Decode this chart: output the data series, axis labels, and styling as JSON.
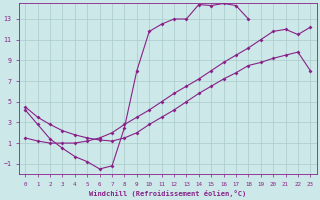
{
  "xlabel": "Windchill (Refroidissement éolien,°C)",
  "bg_color": "#cce8e8",
  "line_color": "#882288",
  "grid_color": "#aacccc",
  "xlim": [
    -0.5,
    23.5
  ],
  "ylim": [
    -2.0,
    14.5
  ],
  "xticks": [
    0,
    1,
    2,
    3,
    4,
    5,
    6,
    7,
    8,
    9,
    10,
    11,
    12,
    13,
    14,
    15,
    16,
    17,
    18,
    19,
    20,
    21,
    22,
    23
  ],
  "yticks": [
    -1,
    1,
    3,
    5,
    7,
    9,
    11,
    13
  ],
  "line1_x": [
    0,
    1,
    2,
    3,
    4,
    5,
    6,
    7,
    8,
    9,
    10,
    11,
    12,
    13,
    14,
    15,
    16,
    17,
    18
  ],
  "line1_y": [
    4.2,
    2.8,
    1.4,
    0.5,
    -0.3,
    -0.8,
    -1.5,
    -1.2,
    2.5,
    8.0,
    11.8,
    12.5,
    13.0,
    13.0,
    14.4,
    14.3,
    14.5,
    14.3,
    13.0
  ],
  "line2_x": [
    0,
    1,
    2,
    3,
    4,
    5,
    6,
    7,
    8,
    9,
    10,
    11,
    12,
    13,
    14,
    15,
    16,
    17,
    18,
    19,
    20,
    21,
    22,
    23
  ],
  "line2_y": [
    4.5,
    3.5,
    2.8,
    2.2,
    1.8,
    1.5,
    1.3,
    1.2,
    1.5,
    2.0,
    2.8,
    3.5,
    4.2,
    5.0,
    5.8,
    6.5,
    7.2,
    7.8,
    8.5,
    8.8,
    9.2,
    9.5,
    9.8,
    8.0
  ],
  "line3_x": [
    0,
    1,
    2,
    3,
    4,
    5,
    6,
    7,
    8,
    9,
    10,
    11,
    12,
    13,
    14,
    15,
    16,
    17,
    18,
    19,
    20,
    21,
    22,
    23
  ],
  "line3_y": [
    1.5,
    1.2,
    1.0,
    1.0,
    1.0,
    1.2,
    1.5,
    2.0,
    2.8,
    3.5,
    4.2,
    5.0,
    5.8,
    6.5,
    7.2,
    8.0,
    8.8,
    9.5,
    10.2,
    11.0,
    11.8,
    12.0,
    11.5,
    12.2
  ]
}
